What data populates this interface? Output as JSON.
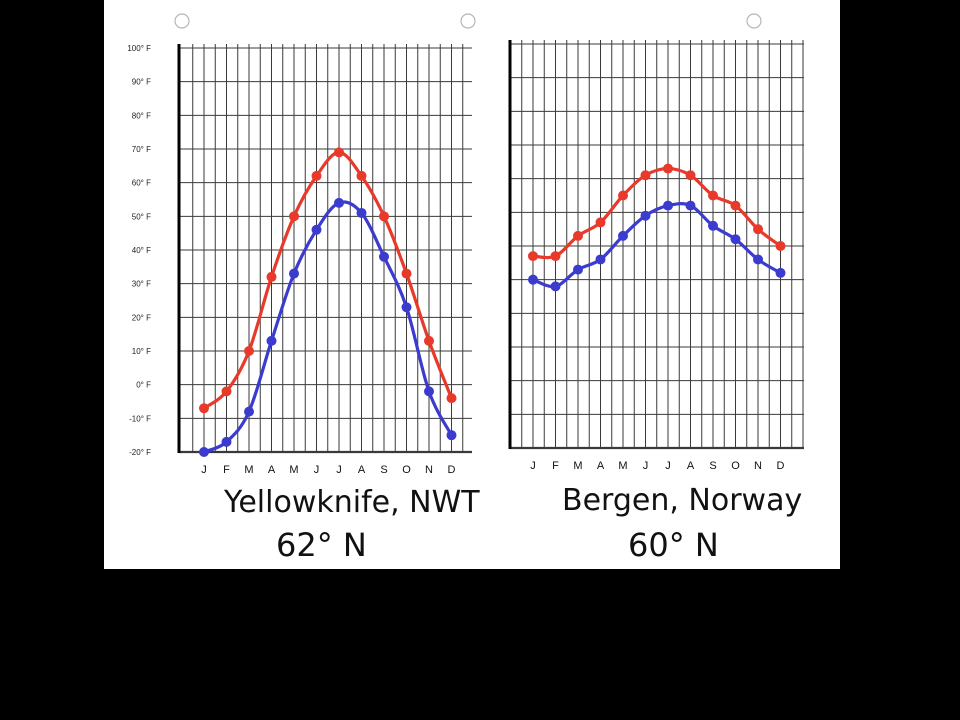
{
  "colors": {
    "max": "#e8392a",
    "min": "#3b3bd0",
    "grid": "#3a3a3a",
    "axis": "#000000"
  },
  "chart_data": [
    {
      "type": "line",
      "title": "Yellowknife, NWT",
      "subtitle": "62° N",
      "categories": [
        "J",
        "F",
        "M",
        "A",
        "M",
        "J",
        "J",
        "A",
        "S",
        "O",
        "N",
        "D"
      ],
      "ylim": [
        -20,
        100
      ],
      "yticks": [
        "100° F",
        "90° F",
        "80° F",
        "70° F",
        "60° F",
        "50° F",
        "40° F",
        "30° F",
        "20° F",
        "10° F",
        "0° F",
        "-10° F",
        "-20° F"
      ],
      "grid": true,
      "series": [
        {
          "color": "#e8392a",
          "values": [
            -7,
            -2,
            10,
            32,
            50,
            62,
            69,
            62,
            50,
            33,
            13,
            -4
          ]
        },
        {
          "color": "#3b3bd0",
          "values": [
            -20,
            -17,
            -8,
            13,
            33,
            46,
            54,
            51,
            38,
            23,
            -2,
            -15
          ]
        }
      ]
    },
    {
      "type": "line",
      "title": "Bergen, Norway",
      "subtitle": "60° N",
      "categories": [
        "J",
        "F",
        "M",
        "A",
        "M",
        "J",
        "J",
        "A",
        "S",
        "O",
        "N",
        "D"
      ],
      "ylim": [
        -20,
        100
      ],
      "grid": true,
      "series": [
        {
          "color": "#e8392a",
          "values": [
            37,
            37,
            43,
            47,
            55,
            61,
            63,
            61,
            55,
            52,
            45,
            40
          ]
        },
        {
          "color": "#3b3bd0",
          "values": [
            30,
            28,
            33,
            36,
            43,
            49,
            52,
            52,
            46,
            42,
            36,
            32
          ]
        }
      ]
    }
  ]
}
